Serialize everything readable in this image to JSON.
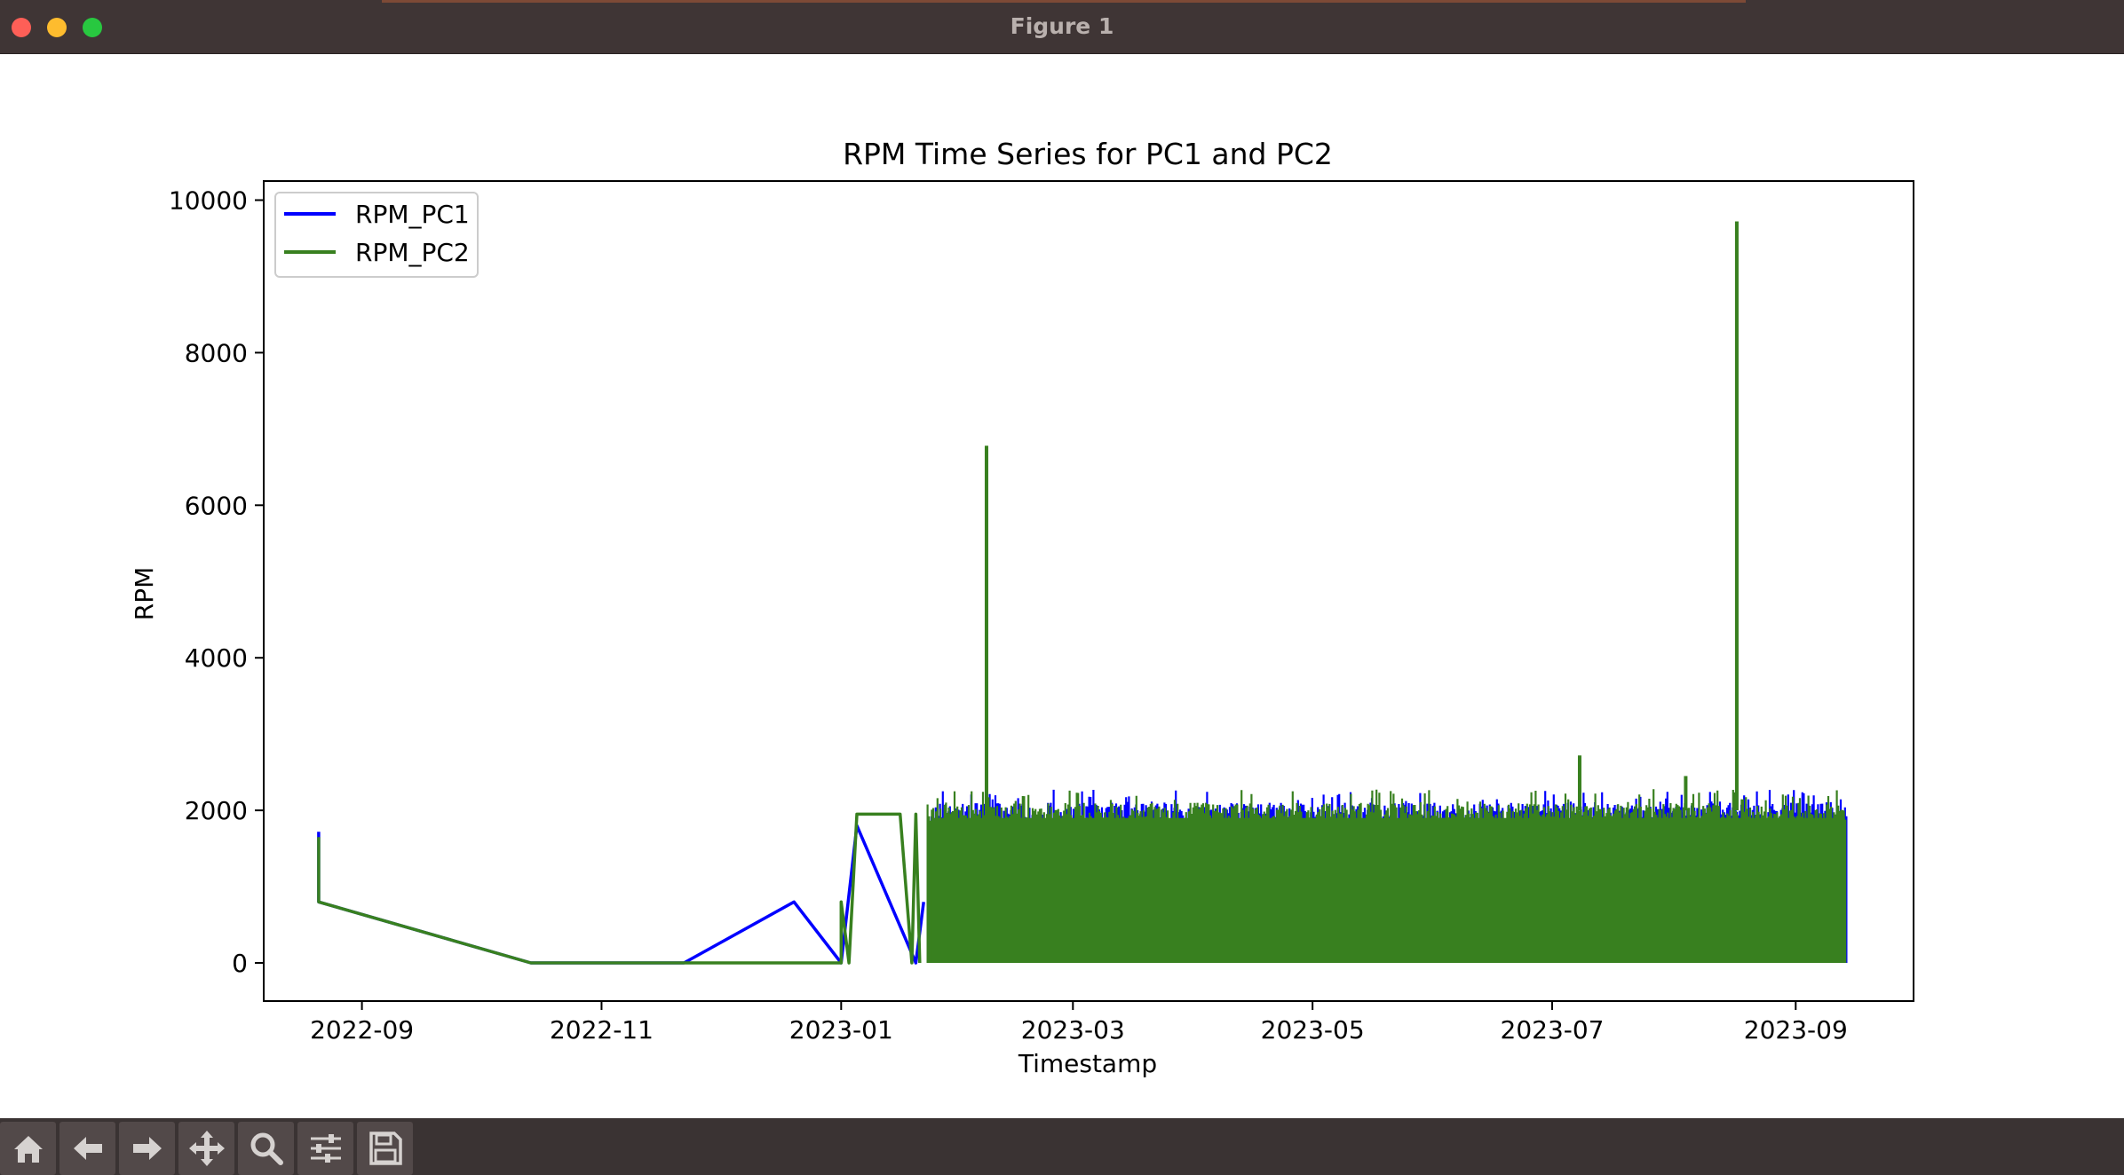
{
  "window": {
    "title": "Figure 1",
    "controls": [
      "close",
      "minimize",
      "maximize"
    ]
  },
  "toolbar": {
    "buttons": [
      {
        "name": "home-icon",
        "label": "Home"
      },
      {
        "name": "back-arrow-icon",
        "label": "Back"
      },
      {
        "name": "forward-arrow-icon",
        "label": "Forward"
      },
      {
        "name": "pan-move-icon",
        "label": "Pan"
      },
      {
        "name": "zoom-magnifier-icon",
        "label": "Zoom"
      },
      {
        "name": "configure-subplots-icon",
        "label": "Subplots"
      },
      {
        "name": "save-disk-icon",
        "label": "Save"
      }
    ]
  },
  "chart_data": {
    "type": "line",
    "title": "RPM Time Series for PC1 and PC2",
    "xlabel": "Timestamp",
    "ylabel": "RPM",
    "xlim": [
      "2022-08-07",
      "2023-10-01"
    ],
    "ylim": [
      -500,
      10250
    ],
    "xticks": [
      "2022-09",
      "2022-11",
      "2023-01",
      "2023-03",
      "2023-05",
      "2023-07",
      "2023-09"
    ],
    "yticks": [
      0,
      2000,
      4000,
      6000,
      8000,
      10000
    ],
    "legend": {
      "position": "top-left",
      "entries": [
        "RPM_PC1",
        "RPM_PC2"
      ]
    },
    "grid": false,
    "colors": {
      "RPM_PC1": "#0000ff",
      "RPM_PC2": "#38801f"
    },
    "series": [
      {
        "name": "RPM_PC1",
        "color": "#0000ff",
        "points": [
          [
            "2022-08-21",
            1720
          ],
          [
            "2022-08-21",
            800
          ],
          [
            "2022-10-14",
            0
          ],
          [
            "2022-11-22",
            0
          ],
          [
            "2022-12-20",
            800
          ],
          [
            "2023-01-01",
            0
          ],
          [
            "2023-01-05",
            1800
          ],
          [
            "2023-01-20",
            0
          ],
          [
            "2023-01-22",
            800
          ]
        ],
        "dense_band": {
          "from": "2023-01-24",
          "to": "2023-09-14",
          "low": 0,
          "high": 2100,
          "peak": 2280
        }
      },
      {
        "name": "RPM_PC2",
        "color": "#38801f",
        "points": [
          [
            "2022-08-21",
            1650
          ],
          [
            "2022-08-21",
            800
          ],
          [
            "2022-10-14",
            0
          ],
          [
            "2023-01-01",
            0
          ],
          [
            "2023-01-01",
            800
          ],
          [
            "2023-01-03",
            0
          ],
          [
            "2023-01-05",
            1950
          ],
          [
            "2023-01-16",
            1950
          ],
          [
            "2023-01-19",
            0
          ],
          [
            "2023-01-20",
            1950
          ],
          [
            "2023-01-21",
            0
          ]
        ],
        "dense_band": {
          "from": "2023-01-23",
          "to": "2023-09-14",
          "low": 0,
          "high": 2100,
          "peak": 2280
        },
        "spikes": [
          [
            "2023-02-07",
            6780
          ],
          [
            "2023-07-08",
            2720
          ],
          [
            "2023-08-04",
            2450
          ],
          [
            "2023-08-17",
            9720
          ]
        ]
      }
    ]
  }
}
